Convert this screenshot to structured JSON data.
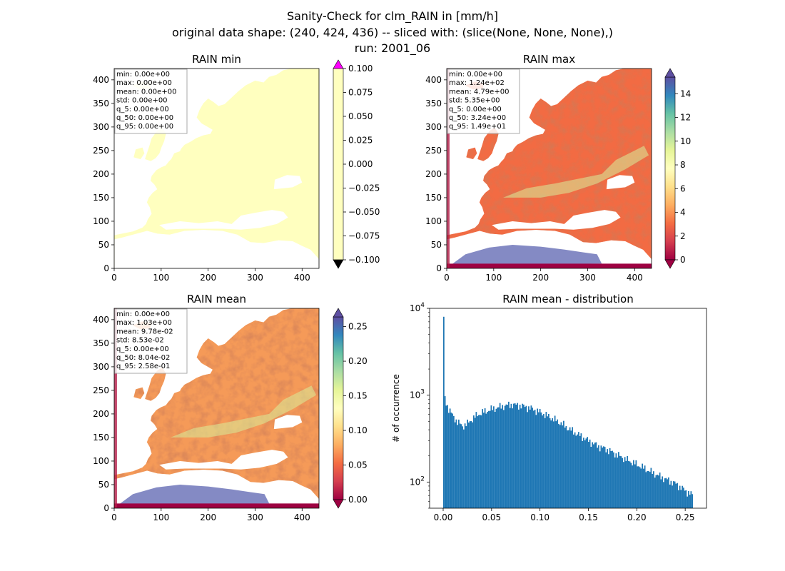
{
  "figure": {
    "title_lines": [
      "Sanity-Check for clm_RAIN in [mm/h]",
      "original data shape: (240, 424, 436) -- sliced with: (slice(None, None, None),)",
      "run: 2001_06"
    ]
  },
  "chart_data": [
    {
      "type": "heatmap",
      "title": "RAIN min",
      "xticks": [
        0,
        100,
        200,
        300,
        400
      ],
      "yticks": [
        0,
        50,
        100,
        150,
        200,
        250,
        300,
        350,
        400
      ],
      "xlim": [
        0,
        436
      ],
      "ylim": [
        0,
        424
      ],
      "colormap": "Spectral",
      "colorbar": {
        "ticks": [
          "-0.100",
          "-0.075",
          "-0.050",
          "-0.025",
          "0.000",
          "0.025",
          "0.050",
          "0.075",
          "0.100"
        ],
        "range": [
          -0.1,
          0.1
        ]
      },
      "stats": [
        "min: 0.00e+00",
        "max: 0.00e+00",
        "mean: 0.00e+00",
        "std: 0.00e+00",
        "q_5: 0.00e+00",
        "q_50: 0.00e+00",
        "q_95: 0.00e+00"
      ]
    },
    {
      "type": "heatmap",
      "title": "RAIN max",
      "xticks": [
        0,
        100,
        200,
        300,
        400
      ],
      "yticks": [
        0,
        50,
        100,
        150,
        200,
        250,
        300,
        350,
        400
      ],
      "xlim": [
        0,
        436
      ],
      "ylim": [
        0,
        424
      ],
      "colormap": "Spectral",
      "colorbar": {
        "ticks": [
          "0",
          "2",
          "4",
          "6",
          "8",
          "10",
          "12",
          "14"
        ],
        "range": [
          0,
          15.4
        ]
      },
      "stats": [
        "min: 0.00e+00",
        "max: 1.24e+02",
        "mean: 4.79e+00",
        "std: 5.35e+00",
        "q_5: 0.00e+00",
        "q_50: 3.24e+00",
        "q_95: 1.49e+01"
      ]
    },
    {
      "type": "heatmap",
      "title": "RAIN mean",
      "xticks": [
        0,
        100,
        200,
        300,
        400
      ],
      "yticks": [
        0,
        50,
        100,
        150,
        200,
        250,
        300,
        350,
        400
      ],
      "xlim": [
        0,
        436
      ],
      "ylim": [
        0,
        424
      ],
      "colormap": "Spectral",
      "colorbar": {
        "ticks": [
          "0.00",
          "0.05",
          "0.10",
          "0.15",
          "0.20",
          "0.25"
        ],
        "range": [
          0,
          0.264
        ]
      },
      "stats": [
        "min: 0.00e+00",
        "max: 1.03e+00",
        "mean: 9.78e-02",
        "std: 8.53e-02",
        "q_5: 0.00e+00",
        "q_50: 8.04e-02",
        "q_95: 2.58e-01"
      ]
    },
    {
      "type": "bar",
      "title": "RAIN mean - distribution",
      "ylabel": "# of occurrence",
      "yscale": "log",
      "xlim": [
        -0.014,
        0.272
      ],
      "ylim": [
        50,
        10000
      ],
      "xticks": [
        "0.00",
        "0.05",
        "0.10",
        "0.15",
        "0.20",
        "0.25"
      ],
      "yticks": [
        100,
        1000,
        10000
      ],
      "color": "#1f77b4",
      "bin_start": 0.0,
      "bin_width": 0.00129,
      "bin_count": 200,
      "histogram_shape": [
        [
          0.0,
          8000
        ],
        [
          0.0013,
          980
        ],
        [
          0.003,
          830
        ],
        [
          0.006,
          690
        ],
        [
          0.01,
          580
        ],
        [
          0.015,
          490
        ],
        [
          0.02,
          440
        ],
        [
          0.025,
          470
        ],
        [
          0.03,
          530
        ],
        [
          0.035,
          590
        ],
        [
          0.04,
          630
        ],
        [
          0.05,
          690
        ],
        [
          0.06,
          740
        ],
        [
          0.07,
          780
        ],
        [
          0.08,
          760
        ],
        [
          0.09,
          710
        ],
        [
          0.1,
          640
        ],
        [
          0.11,
          560
        ],
        [
          0.12,
          490
        ],
        [
          0.13,
          410
        ],
        [
          0.14,
          350
        ],
        [
          0.15,
          300
        ],
        [
          0.16,
          260
        ],
        [
          0.17,
          235
        ],
        [
          0.18,
          205
        ],
        [
          0.19,
          180
        ],
        [
          0.2,
          160
        ],
        [
          0.21,
          140
        ],
        [
          0.22,
          122
        ],
        [
          0.23,
          108
        ],
        [
          0.24,
          96
        ],
        [
          0.25,
          80
        ],
        [
          0.258,
          70
        ]
      ]
    }
  ]
}
